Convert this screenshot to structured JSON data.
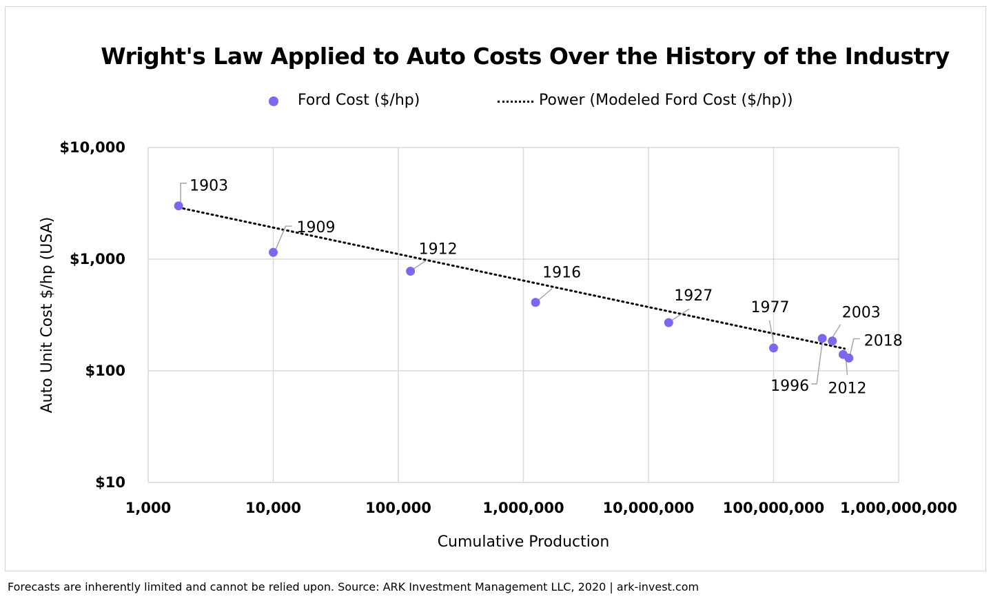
{
  "footer": "Forecasts are inherently limited and cannot be relied upon. Source: ARK Investment Management LLC, 2020  |  ark-invest.com",
  "chart_data": {
    "type": "scatter",
    "title": "Wright's Law Applied to Auto Costs Over the History of the Industry",
    "xlabel": "Cumulative Production",
    "ylabel": "Auto Unit Cost $/hp (USA)",
    "x_scale": "log",
    "y_scale": "log",
    "xlim": [
      1000,
      1000000000
    ],
    "ylim": [
      10,
      10000
    ],
    "x_ticks": [
      1000,
      10000,
      100000,
      1000000,
      10000000,
      100000000,
      1000000000
    ],
    "x_tick_labels": [
      "1,000",
      "10,000",
      "100,000",
      "1,000,000",
      "10,000,000",
      "100,000,000",
      "1,000,000,000"
    ],
    "y_ticks": [
      10,
      100,
      1000,
      10000
    ],
    "y_tick_labels": [
      "$10",
      "$100",
      "$1,000",
      "$10,000"
    ],
    "grid": true,
    "legend_position": "top",
    "colors": {
      "points": "#7b68ee",
      "trend": "#000000",
      "grid": "#d9d9d9",
      "leader": "#a6a6a6"
    },
    "series": [
      {
        "name": "Ford Cost ($/hp)",
        "kind": "scatter",
        "points": [
          {
            "label": "1903",
            "x": 1750,
            "y": 3000
          },
          {
            "label": "1909",
            "x": 10000,
            "y": 1150
          },
          {
            "label": "1912",
            "x": 125000,
            "y": 780
          },
          {
            "label": "1916",
            "x": 1250000,
            "y": 410
          },
          {
            "label": "1927",
            "x": 14500000,
            "y": 270
          },
          {
            "label": "1977",
            "x": 100000000,
            "y": 160
          },
          {
            "label": "1996",
            "x": 245000000,
            "y": 195
          },
          {
            "label": "2003",
            "x": 295000000,
            "y": 185
          },
          {
            "label": "2012",
            "x": 360000000,
            "y": 140
          },
          {
            "label": "2018",
            "x": 400000000,
            "y": 130
          }
        ]
      },
      {
        "name": "Power (Modeled Ford Cost ($/hp))",
        "kind": "trendline",
        "points": [
          {
            "x": 1750,
            "y": 2900
          },
          {
            "x": 370000000,
            "y": 158
          }
        ]
      }
    ]
  }
}
